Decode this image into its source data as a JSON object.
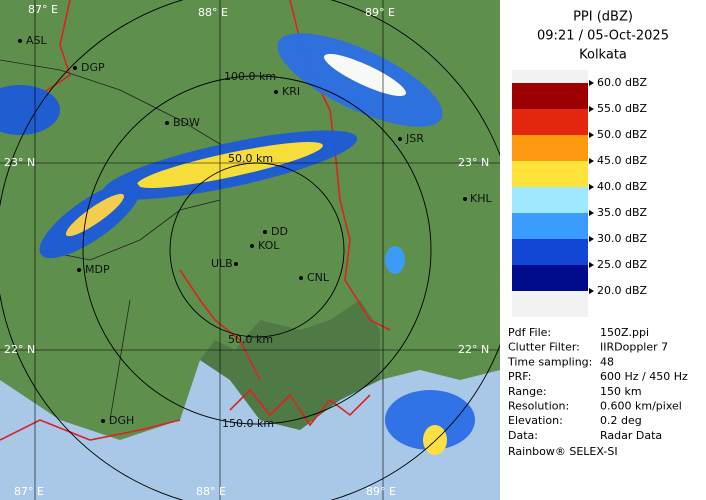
{
  "header": {
    "title": "PPI (dBZ)",
    "time": "09:21 / 05-Oct-2025",
    "site": "Kolkata"
  },
  "legend": {
    "levels": [
      {
        "value": 60,
        "label": "60.0 dBZ"
      },
      {
        "value": 55,
        "label": "55.0 dBZ"
      },
      {
        "value": 50,
        "label": "50.0 dBZ"
      },
      {
        "value": 45,
        "label": "45.0 dBZ"
      },
      {
        "value": 40,
        "label": "40.0 dBZ"
      },
      {
        "value": 35,
        "label": "35.0 dBZ"
      },
      {
        "value": 30,
        "label": "30.0 dBZ"
      },
      {
        "value": 25,
        "label": "25.0 dBZ"
      },
      {
        "value": 20,
        "label": "20.0 dBZ"
      }
    ],
    "colors": [
      "#9c0000",
      "#e5260f",
      "#ff9a10",
      "#ffe23a",
      "#9ee9ff",
      "#3a9cff",
      "#1247d6",
      "#000c8c"
    ]
  },
  "info": [
    [
      "Pdf File:",
      "150Z.ppi"
    ],
    [
      "Clutter Filter:",
      "IIRDoppler 7"
    ],
    [
      "Time sampling:",
      "48"
    ],
    [
      "PRF:",
      "600 Hz / 450 Hz"
    ],
    [
      "Range:",
      "150 km"
    ],
    [
      "Resolution:",
      "0.600 km/pixel"
    ],
    [
      "Elevation:",
      "0.2 deg"
    ],
    [
      "Data:",
      "Radar Data"
    ]
  ],
  "footer": "Rainbow® SELEX-SI",
  "map": {
    "grid_labels": [
      "87° E",
      "88° E",
      "89° E",
      "88° E",
      "89° E",
      "87° E",
      "23° N",
      "22° N",
      "23° N",
      "22° N"
    ],
    "ring_labels": [
      "50.0 km",
      "100.0 km",
      "50.0 km",
      "150.0 km"
    ],
    "places": [
      "ASL",
      "DGP",
      "BDW",
      "KRI",
      "JSR",
      "KHL",
      "DD",
      "KOL",
      "ULB",
      "CNL",
      "MDP",
      "DGH"
    ]
  }
}
